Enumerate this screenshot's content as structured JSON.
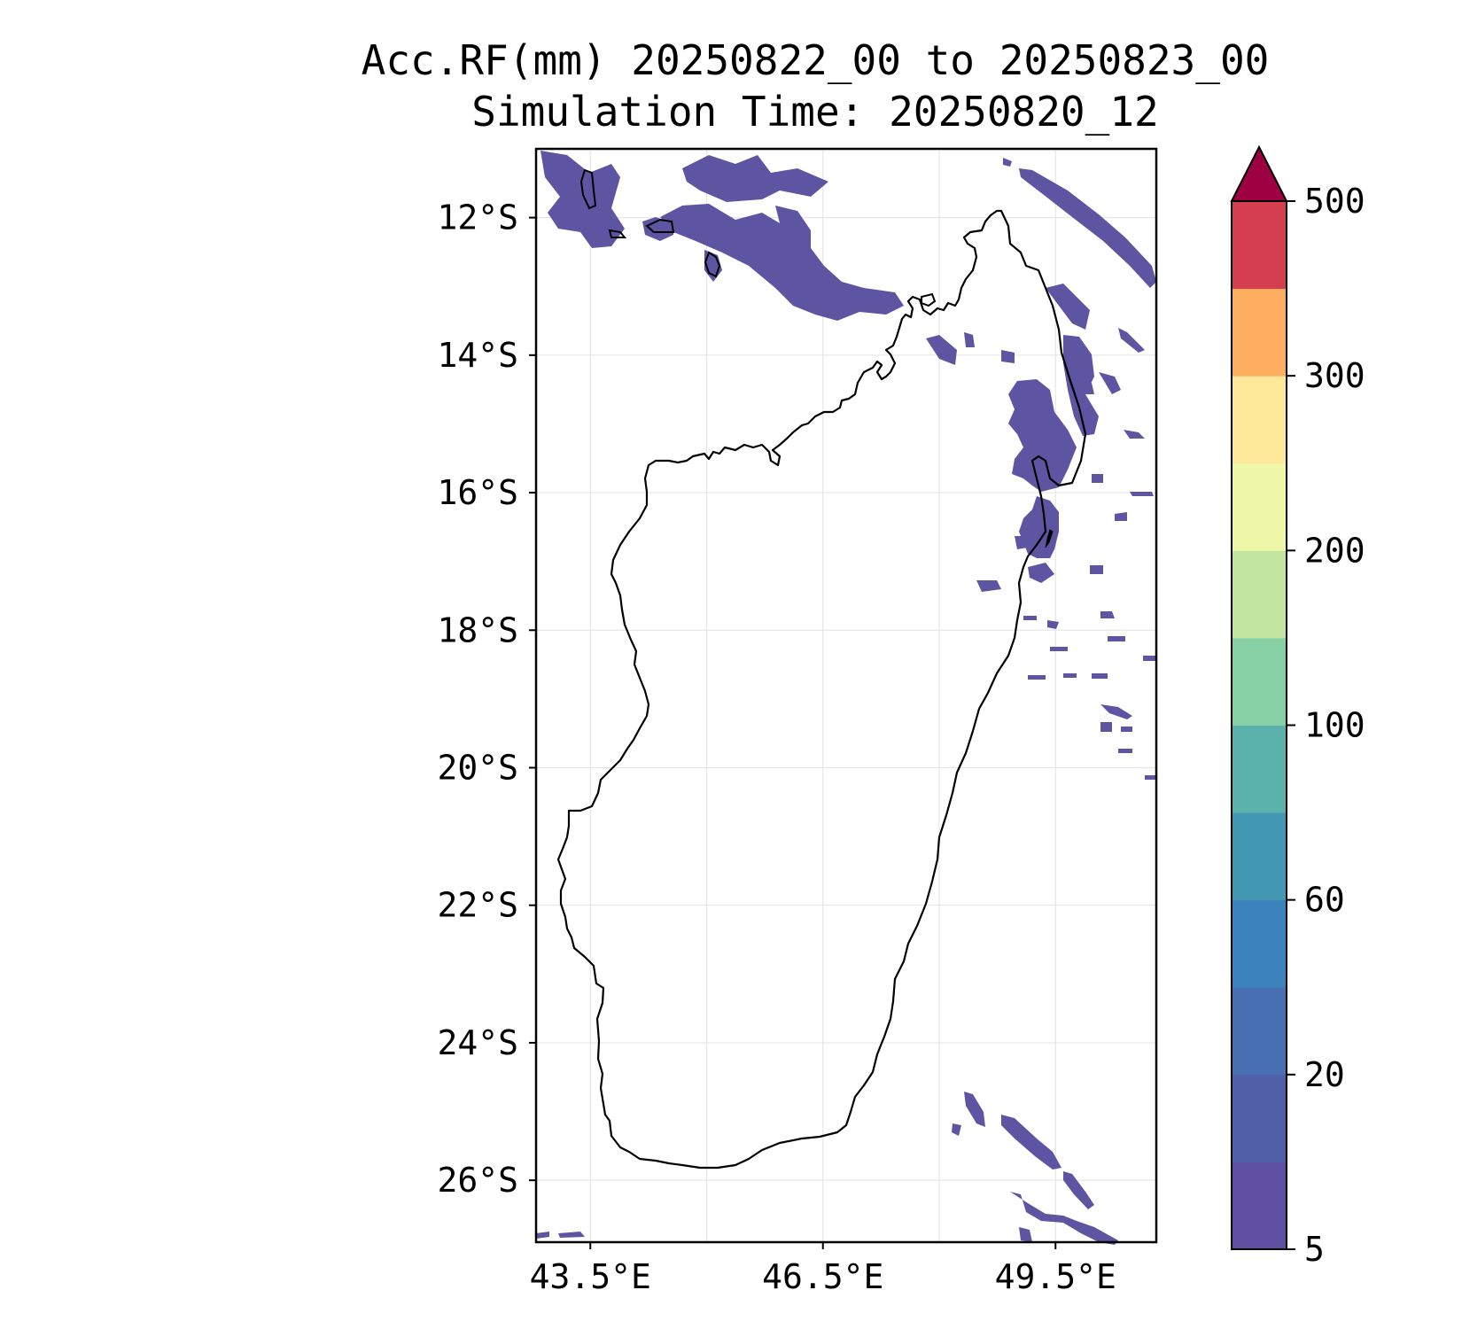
{
  "title": {
    "line1": "Acc.RF(mm) 20250822_00 to 20250823_00",
    "line2": "Simulation Time: 20250820_12"
  },
  "map": {
    "region": "Madagascar",
    "lon_range": [
      42.8,
      50.8
    ],
    "lat_range": [
      -26.9,
      -11.0
    ],
    "lat_ticks": [
      {
        "value": -12,
        "label": "12°S"
      },
      {
        "value": -14,
        "label": "14°S"
      },
      {
        "value": -16,
        "label": "16°S"
      },
      {
        "value": -18,
        "label": "18°S"
      },
      {
        "value": -20,
        "label": "20°S"
      },
      {
        "value": -22,
        "label": "22°S"
      },
      {
        "value": -24,
        "label": "24°S"
      },
      {
        "value": -26,
        "label": "26°S"
      }
    ],
    "lon_ticks": [
      {
        "value": 43.5,
        "label": "43.5°E"
      },
      {
        "value": 46.5,
        "label": "46.5°E"
      },
      {
        "value": 49.5,
        "label": "49.5°E"
      }
    ],
    "gridlines": true,
    "rain_color": "#5e55a2"
  },
  "colorbar": {
    "colors": [
      "#5e4fa2",
      "#4f5fa8",
      "#476fb2",
      "#3b83bc",
      "#4399b4",
      "#5bb2ad",
      "#87cfa4",
      "#c2e69f",
      "#eef8a8",
      "#fee89a",
      "#fdae61",
      "#d53e4f"
    ],
    "extend_color": "#9e0142",
    "tick_labels": [
      {
        "index": 0,
        "label": "5"
      },
      {
        "index": 2,
        "label": "20"
      },
      {
        "index": 4,
        "label": "60"
      },
      {
        "index": 6,
        "label": "100"
      },
      {
        "index": 8,
        "label": "200"
      },
      {
        "index": 10,
        "label": "300"
      },
      {
        "index": 12,
        "label": "500"
      }
    ]
  }
}
